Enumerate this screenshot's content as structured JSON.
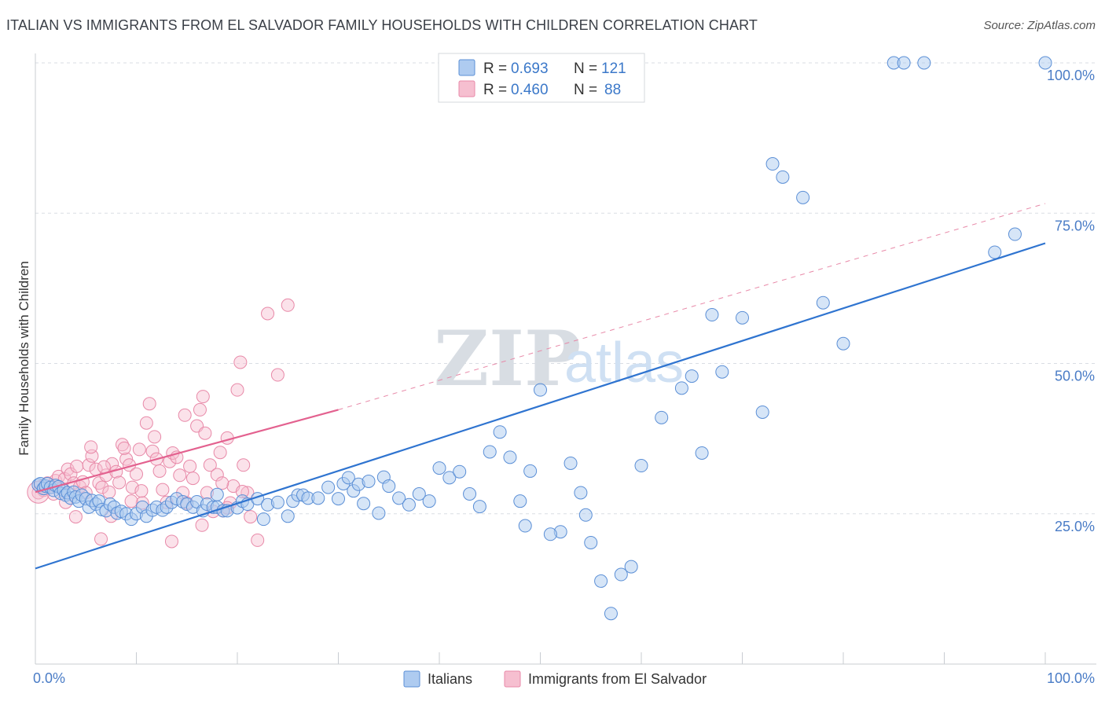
{
  "title": "ITALIAN VS IMMIGRANTS FROM EL SALVADOR FAMILY HOUSEHOLDS WITH CHILDREN CORRELATION CHART",
  "source": "Source: ZipAtlas.com",
  "colors": {
    "italians_fill": "#aecbf0",
    "italians_stroke": "#5b8fd6",
    "italians_line": "#2f74d0",
    "elsalvador_fill": "#f6bfd0",
    "elsalvador_stroke": "#e889a8",
    "elsalvador_line": "#e3618f",
    "tick_color": "#4a7cc6",
    "grid_color": "#d9dde3"
  },
  "legend": {
    "r_label": "R =",
    "n_label": "N =",
    "rows": [
      {
        "r": "0.693",
        "n": "121"
      },
      {
        "r": "0.460",
        "n": "88"
      }
    ]
  },
  "watermark": {
    "zip": "ZIP",
    "atlas": "atlas"
  },
  "chart_data": {
    "type": "scatter",
    "title": "ITALIAN VS IMMIGRANTS FROM EL SALVADOR FAMILY HOUSEHOLDS WITH CHILDREN CORRELATION CHART",
    "xlabel": "",
    "ylabel": "Family Households with Children",
    "xlim": [
      0,
      100
    ],
    "ylim": [
      0,
      100
    ],
    "x_tick_labels": [
      "0.0%",
      "100.0%"
    ],
    "y_ticks": [
      25,
      50,
      75,
      100
    ],
    "y_tick_labels": [
      "25.0%",
      "50.0%",
      "75.0%",
      "100.0%"
    ],
    "grid": true,
    "series": [
      {
        "name": "Italians",
        "r": 0.693,
        "n": 121,
        "trend": {
          "x": [
            0,
            100
          ],
          "y": [
            15.9,
            70.0
          ]
        },
        "points": [
          [
            0.3,
            29.8
          ],
          [
            0.5,
            30.0
          ],
          [
            0.8,
            29.2
          ],
          [
            1.0,
            29.6
          ],
          [
            1.2,
            30.0
          ],
          [
            1.5,
            29.4
          ],
          [
            1.8,
            28.9
          ],
          [
            2.0,
            29.7
          ],
          [
            2.3,
            29.5
          ],
          [
            2.5,
            28.4
          ],
          [
            2.8,
            28.9
          ],
          [
            3.0,
            28.1
          ],
          [
            3.2,
            28.5
          ],
          [
            3.5,
            27.6
          ],
          [
            3.8,
            28.6
          ],
          [
            4.0,
            27.8
          ],
          [
            4.3,
            27.1
          ],
          [
            4.6,
            28.1
          ],
          [
            5.0,
            27.5
          ],
          [
            5.3,
            26.1
          ],
          [
            5.6,
            27.2
          ],
          [
            6.0,
            26.6
          ],
          [
            6.3,
            27.1
          ],
          [
            6.6,
            25.7
          ],
          [
            7.0,
            25.5
          ],
          [
            7.4,
            26.6
          ],
          [
            7.8,
            26.1
          ],
          [
            8.1,
            25.1
          ],
          [
            8.5,
            25.4
          ],
          [
            9.0,
            25.0
          ],
          [
            9.5,
            24.1
          ],
          [
            10.0,
            25.0
          ],
          [
            10.6,
            26.1
          ],
          [
            11.0,
            24.6
          ],
          [
            11.6,
            25.6
          ],
          [
            12.0,
            26.1
          ],
          [
            12.6,
            25.6
          ],
          [
            13.0,
            26.1
          ],
          [
            13.5,
            26.9
          ],
          [
            14.0,
            27.5
          ],
          [
            14.6,
            27.0
          ],
          [
            15.0,
            26.6
          ],
          [
            15.6,
            26.1
          ],
          [
            16.0,
            27.0
          ],
          [
            16.6,
            25.5
          ],
          [
            17.0,
            26.6
          ],
          [
            17.6,
            26.1
          ],
          [
            18.0,
            26.1
          ],
          [
            18.6,
            25.5
          ],
          [
            19.0,
            25.5
          ],
          [
            20.0,
            26.0
          ],
          [
            20.5,
            27.1
          ],
          [
            21.0,
            26.6
          ],
          [
            22.0,
            27.5
          ],
          [
            22.6,
            24.1
          ],
          [
            23.0,
            26.5
          ],
          [
            24.0,
            26.9
          ],
          [
            25.0,
            24.6
          ],
          [
            25.5,
            27.1
          ],
          [
            26.0,
            28.1
          ],
          [
            26.5,
            28.1
          ],
          [
            27.0,
            27.6
          ],
          [
            28.0,
            27.6
          ],
          [
            29.0,
            29.4
          ],
          [
            30.0,
            27.5
          ],
          [
            30.5,
            30.0
          ],
          [
            31.0,
            31.0
          ],
          [
            31.5,
            28.8
          ],
          [
            32.0,
            29.9
          ],
          [
            32.5,
            26.7
          ],
          [
            33.0,
            30.4
          ],
          [
            34.0,
            25.1
          ],
          [
            34.5,
            31.1
          ],
          [
            35.0,
            29.6
          ],
          [
            36.0,
            27.6
          ],
          [
            37.0,
            26.5
          ],
          [
            38.0,
            28.3
          ],
          [
            39.0,
            27.1
          ],
          [
            40.0,
            32.6
          ],
          [
            41.0,
            31.0
          ],
          [
            42.0,
            32.0
          ],
          [
            43.0,
            28.3
          ],
          [
            44.0,
            26.2
          ],
          [
            45.0,
            35.3
          ],
          [
            46.0,
            38.6
          ],
          [
            47.0,
            34.4
          ],
          [
            48.0,
            27.1
          ],
          [
            49.0,
            32.1
          ],
          [
            50.0,
            45.6
          ],
          [
            52.0,
            22.0
          ],
          [
            53.0,
            33.4
          ],
          [
            54.0,
            28.5
          ],
          [
            55.0,
            20.2
          ],
          [
            56.0,
            13.8
          ],
          [
            57.0,
            8.4
          ],
          [
            58.0,
            14.9
          ],
          [
            59.0,
            16.2
          ],
          [
            60.0,
            33.0
          ],
          [
            62.0,
            41.0
          ],
          [
            64.0,
            45.9
          ],
          [
            65.0,
            47.9
          ],
          [
            66.0,
            35.1
          ],
          [
            67.0,
            58.1
          ],
          [
            68.0,
            48.6
          ],
          [
            70.0,
            57.6
          ],
          [
            72.0,
            41.9
          ],
          [
            73.0,
            83.2
          ],
          [
            74.0,
            81.0
          ],
          [
            76.0,
            77.6
          ],
          [
            78.0,
            60.1
          ],
          [
            80.0,
            53.3
          ],
          [
            85.0,
            100
          ],
          [
            86.0,
            100
          ],
          [
            88.0,
            100
          ],
          [
            95.0,
            68.5
          ],
          [
            97.0,
            71.5
          ],
          [
            100.0,
            100
          ],
          [
            54.5,
            24.8
          ],
          [
            48.5,
            23.0
          ],
          [
            51.0,
            21.6
          ],
          [
            18.0,
            28.2
          ]
        ]
      },
      {
        "name": "Immigrants from El Salvador",
        "r": 0.46,
        "n": 88,
        "trend": {
          "x": [
            0,
            30
          ],
          "y": [
            28.6,
            42.3
          ]
        },
        "trend_dashed": {
          "x": [
            30,
            100
          ],
          "y": [
            42.3,
            76.6
          ]
        },
        "points": [
          [
            0.3,
            28.5
          ],
          [
            0.5,
            29.5
          ],
          [
            0.8,
            28.9
          ],
          [
            1.0,
            29.2
          ],
          [
            1.2,
            30.1
          ],
          [
            1.5,
            29.4
          ],
          [
            1.8,
            28.3
          ],
          [
            2.0,
            30.5
          ],
          [
            2.3,
            31.2
          ],
          [
            2.6,
            29.2
          ],
          [
            2.9,
            30.8
          ],
          [
            3.2,
            32.4
          ],
          [
            3.5,
            31.6
          ],
          [
            3.8,
            30.1
          ],
          [
            4.1,
            32.9
          ],
          [
            4.4,
            29.5
          ],
          [
            4.7,
            30.3
          ],
          [
            5.0,
            28.5
          ],
          [
            5.3,
            33.1
          ],
          [
            5.6,
            34.6
          ],
          [
            6.0,
            32.4
          ],
          [
            6.3,
            30.1
          ],
          [
            6.6,
            29.4
          ],
          [
            7.0,
            31.4
          ],
          [
            7.3,
            28.6
          ],
          [
            7.6,
            33.3
          ],
          [
            8.0,
            32.0
          ],
          [
            8.3,
            30.2
          ],
          [
            8.6,
            36.5
          ],
          [
            9.0,
            34.1
          ],
          [
            9.3,
            33.1
          ],
          [
            9.6,
            29.4
          ],
          [
            10.0,
            31.6
          ],
          [
            10.3,
            35.7
          ],
          [
            10.6,
            26.8
          ],
          [
            11.0,
            40.1
          ],
          [
            11.3,
            43.3
          ],
          [
            11.6,
            35.4
          ],
          [
            12.0,
            34.1
          ],
          [
            12.3,
            32.1
          ],
          [
            12.6,
            29.0
          ],
          [
            13.0,
            26.9
          ],
          [
            13.3,
            33.7
          ],
          [
            13.6,
            35.1
          ],
          [
            14.0,
            34.4
          ],
          [
            14.3,
            31.4
          ],
          [
            14.6,
            28.5
          ],
          [
            15.0,
            26.8
          ],
          [
            15.3,
            32.9
          ],
          [
            15.6,
            30.9
          ],
          [
            16.0,
            39.6
          ],
          [
            16.3,
            42.3
          ],
          [
            16.6,
            44.5
          ],
          [
            17.0,
            28.5
          ],
          [
            17.3,
            33.1
          ],
          [
            17.6,
            25.4
          ],
          [
            18.0,
            31.5
          ],
          [
            18.3,
            35.2
          ],
          [
            18.6,
            25.5
          ],
          [
            19.0,
            37.6
          ],
          [
            19.3,
            26.8
          ],
          [
            19.6,
            29.6
          ],
          [
            20.0,
            45.6
          ],
          [
            20.3,
            50.2
          ],
          [
            20.6,
            33.1
          ],
          [
            21.0,
            28.5
          ],
          [
            21.3,
            24.5
          ],
          [
            22.0,
            20.6
          ],
          [
            23.0,
            58.3
          ],
          [
            24.0,
            48.1
          ],
          [
            25.0,
            59.7
          ],
          [
            3.0,
            26.9
          ],
          [
            4.0,
            24.5
          ],
          [
            6.5,
            20.8
          ],
          [
            7.5,
            24.6
          ],
          [
            9.5,
            27.1
          ],
          [
            10.5,
            28.8
          ],
          [
            13.5,
            20.4
          ],
          [
            16.5,
            23.1
          ],
          [
            18.5,
            30.1
          ],
          [
            19.0,
            26.0
          ],
          [
            20.5,
            28.7
          ],
          [
            5.5,
            36.1
          ],
          [
            6.8,
            32.8
          ],
          [
            8.8,
            35.9
          ],
          [
            11.8,
            37.8
          ],
          [
            14.8,
            41.4
          ],
          [
            16.8,
            38.4
          ]
        ]
      }
    ]
  },
  "bottom_legend": [
    "Italians",
    "Immigrants from El Salvador"
  ]
}
